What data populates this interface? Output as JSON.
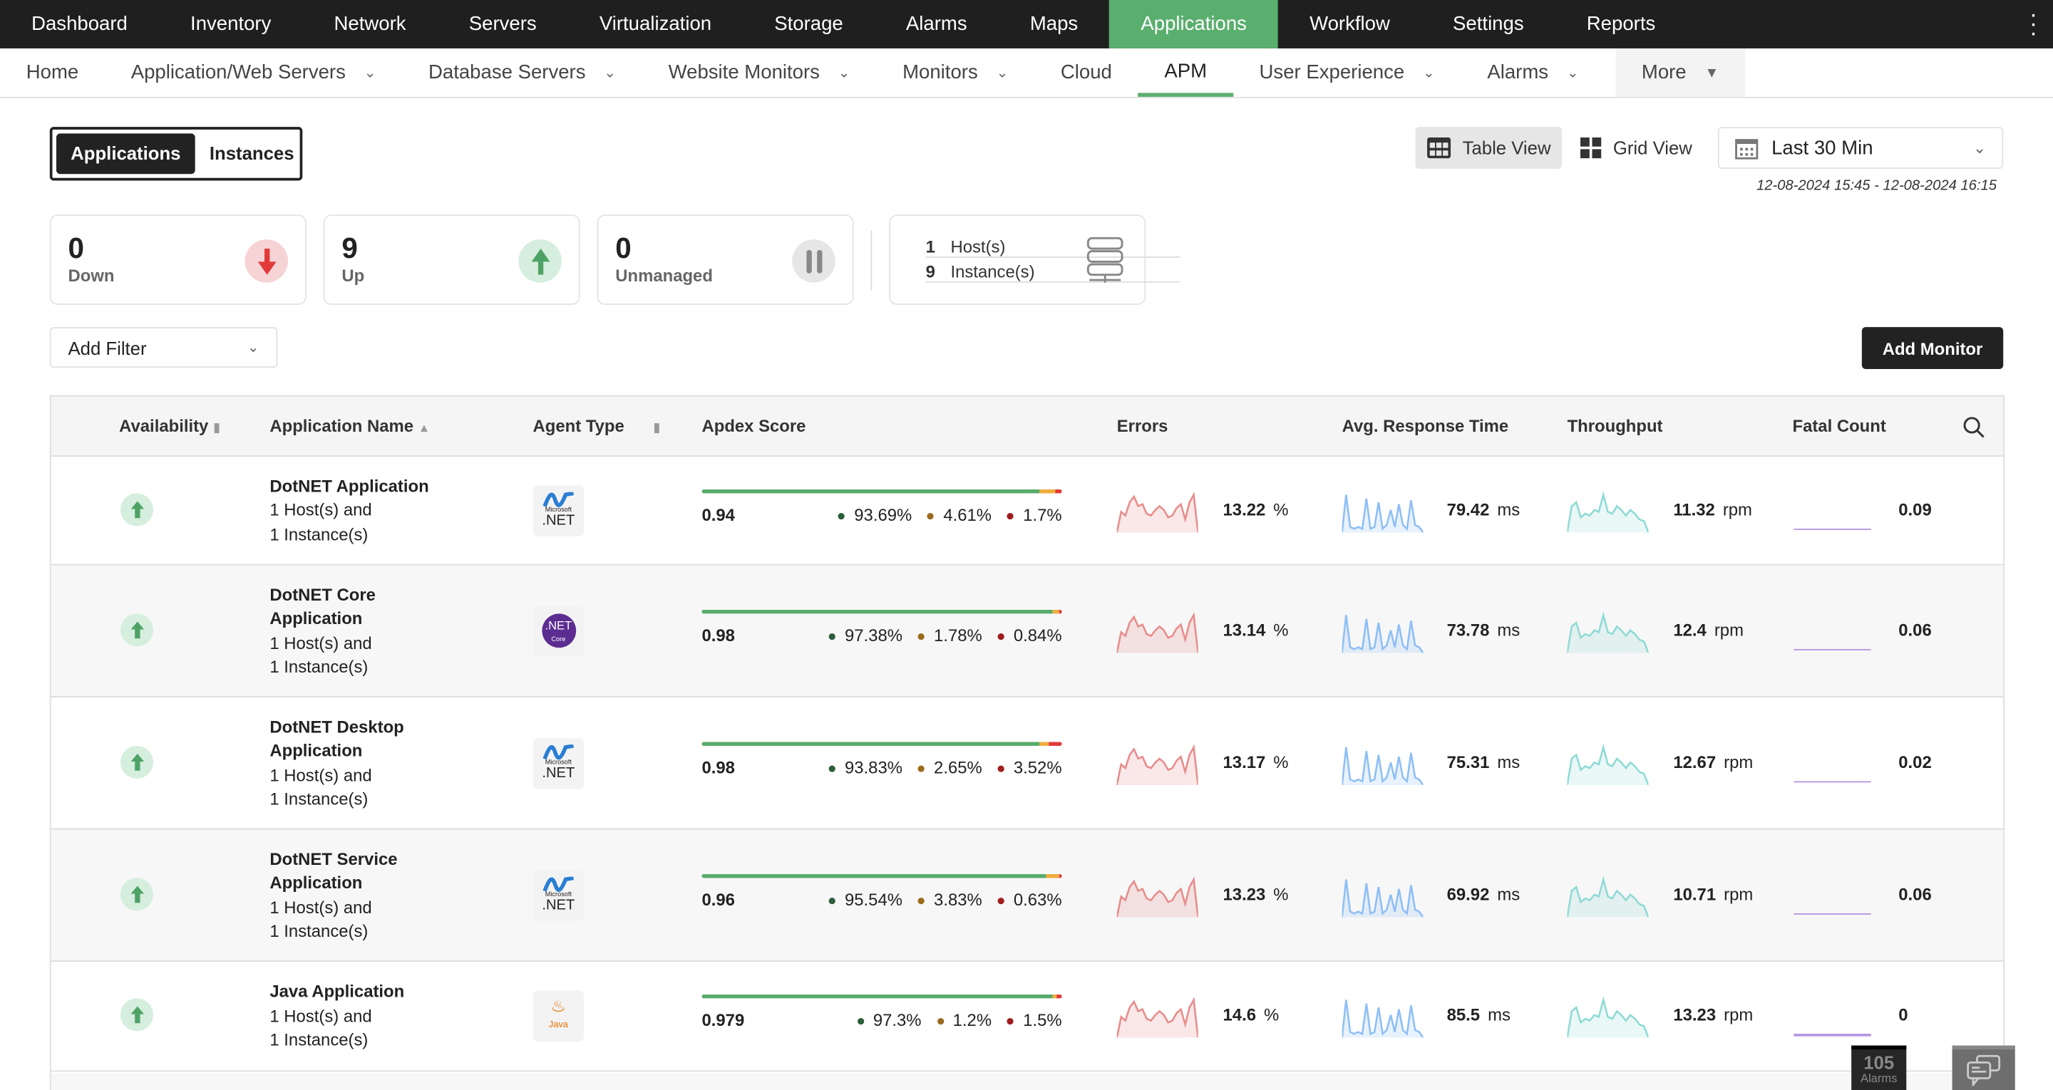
{
  "topnav": {
    "items": [
      "Dashboard",
      "Inventory",
      "Network",
      "Servers",
      "Virtualization",
      "Storage",
      "Alarms",
      "Maps",
      "Applications",
      "Workflow",
      "Settings",
      "Reports"
    ],
    "active": "Applications"
  },
  "subnav": {
    "items": [
      {
        "label": "Home",
        "dd": false
      },
      {
        "label": "Application/Web Servers",
        "dd": true
      },
      {
        "label": "Database Servers",
        "dd": true
      },
      {
        "label": "Website Monitors",
        "dd": true
      },
      {
        "label": "Monitors",
        "dd": true
      },
      {
        "label": "Cloud",
        "dd": false
      },
      {
        "label": "APM",
        "dd": false,
        "active": true
      },
      {
        "label": "User Experience",
        "dd": true
      },
      {
        "label": "Alarms",
        "dd": true
      }
    ],
    "more": "More"
  },
  "toggle": {
    "applications": "Applications",
    "instances": "Instances"
  },
  "views": {
    "table": "Table View",
    "grid": "Grid View"
  },
  "time_range": {
    "selected": "Last 30 Min",
    "range": "12-08-2024 15:45 - 12-08-2024 16:15"
  },
  "summary": {
    "down": {
      "count": "0",
      "label": "Down"
    },
    "up": {
      "count": "9",
      "label": "Up"
    },
    "unmanaged": {
      "count": "0",
      "label": "Unmanaged"
    },
    "hosts": {
      "count": "1",
      "label": "Host(s)"
    },
    "instances": {
      "count": "9",
      "label": "Instance(s)"
    }
  },
  "filter": {
    "label": "Add Filter"
  },
  "add_monitor": "Add Monitor",
  "table": {
    "headers": {
      "availability": "Availability",
      "name": "Application Name",
      "agent": "Agent Type",
      "apdex": "Apdex Score",
      "errors": "Errors",
      "resp": "Avg. Response Time",
      "throughput": "Throughput",
      "fatal": "Fatal Count"
    },
    "rows": [
      {
        "name": "DotNET Application",
        "sub1": "1 Host(s) and",
        "sub2": "1 Instance(s)",
        "agent": "Microsoft .NET",
        "apdex": "0.94",
        "satisfied": 93.69,
        "tolerating": 4.61,
        "frustrated": 1.7,
        "satisfied_label": "93.69%",
        "tolerating_label": "4.61%",
        "frustrated_label": "1.7%",
        "errors": "13.22",
        "errors_unit": "%",
        "resp": "79.42",
        "resp_unit": "ms",
        "throughput": "11.32",
        "throughput_unit": "rpm",
        "fatal": "0.09"
      },
      {
        "name": "DotNET Core Application",
        "sub1": "1 Host(s) and",
        "sub2": "1 Instance(s)",
        "agent": ".NET Core",
        "apdex": "0.98",
        "satisfied": 97.38,
        "tolerating": 1.78,
        "frustrated": 0.84,
        "satisfied_label": "97.38%",
        "tolerating_label": "1.78%",
        "frustrated_label": "0.84%",
        "errors": "13.14",
        "errors_unit": "%",
        "resp": "73.78",
        "resp_unit": "ms",
        "throughput": "12.4",
        "throughput_unit": "rpm",
        "fatal": "0.06"
      },
      {
        "name": "DotNET Desktop Application",
        "sub1": "1 Host(s) and",
        "sub2": "1 Instance(s)",
        "agent": "Microsoft .NET",
        "apdex": "0.98",
        "satisfied": 93.83,
        "tolerating": 2.65,
        "frustrated": 3.52,
        "satisfied_label": "93.83%",
        "tolerating_label": "2.65%",
        "frustrated_label": "3.52%",
        "errors": "13.17",
        "errors_unit": "%",
        "resp": "75.31",
        "resp_unit": "ms",
        "throughput": "12.67",
        "throughput_unit": "rpm",
        "fatal": "0.02"
      },
      {
        "name": "DotNET Service Application",
        "sub1": "1 Host(s) and",
        "sub2": "1 Instance(s)",
        "agent": "Microsoft .NET",
        "apdex": "0.96",
        "satisfied": 95.54,
        "tolerating": 3.83,
        "frustrated": 0.63,
        "satisfied_label": "95.54%",
        "tolerating_label": "3.83%",
        "frustrated_label": "0.63%",
        "errors": "13.23",
        "errors_unit": "%",
        "resp": "69.92",
        "resp_unit": "ms",
        "throughput": "10.71",
        "throughput_unit": "rpm",
        "fatal": "0.06"
      },
      {
        "name": "Java Application",
        "sub1": "1 Host(s) and",
        "sub2": "1 Instance(s)",
        "agent": "Java",
        "apdex": "0.979",
        "satisfied": 97.3,
        "tolerating": 1.2,
        "frustrated": 1.5,
        "satisfied_label": "97.3%",
        "tolerating_label": "1.2%",
        "frustrated_label": "1.5%",
        "errors": "14.6",
        "errors_unit": "%",
        "resp": "85.5",
        "resp_unit": "ms",
        "throughput": "13.23",
        "throughput_unit": "rpm",
        "fatal": "0"
      }
    ]
  },
  "footer": {
    "alarm_count": "105",
    "alarm_label": "Alarms"
  },
  "colors": {
    "accent": "#5aae6e",
    "satisfied": "#57ab6c",
    "tolerating": "#f0ad3c",
    "frustrated": "#e23a3a",
    "errors": "#e88c8c",
    "resp": "#8ebff5",
    "throughput": "#8fdad5",
    "fatal": "#b596e3"
  }
}
